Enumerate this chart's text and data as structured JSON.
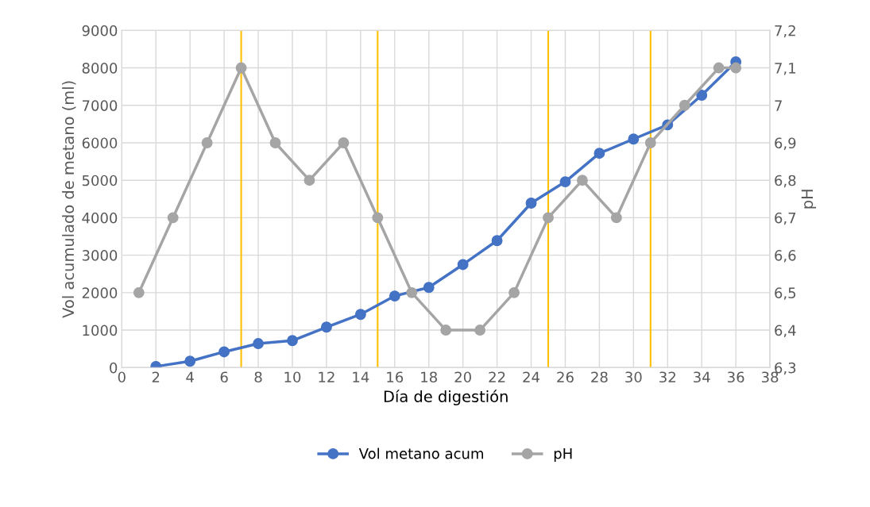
{
  "chart_data": {
    "type": "line",
    "xlabel": "Día de digestión",
    "ylabel": "Vol acumulado de metano (ml)",
    "y2label": "pH",
    "xlim": [
      0,
      38
    ],
    "xticks": [
      0,
      2,
      4,
      6,
      8,
      10,
      12,
      14,
      16,
      18,
      20,
      22,
      24,
      26,
      28,
      30,
      32,
      34,
      36,
      38
    ],
    "ylim": [
      0,
      9000
    ],
    "yticks": [
      0,
      1000,
      2000,
      3000,
      4000,
      5000,
      6000,
      7000,
      8000,
      9000
    ],
    "y2lim": [
      6.3,
      7.2
    ],
    "y2ticks": [
      {
        "value": 6.3,
        "label": "6,3"
      },
      {
        "value": 6.4,
        "label": "6,4"
      },
      {
        "value": 6.5,
        "label": "6,5"
      },
      {
        "value": 6.6,
        "label": "6,6"
      },
      {
        "value": 6.7,
        "label": "6,7"
      },
      {
        "value": 6.8,
        "label": "6,8"
      },
      {
        "value": 6.9,
        "label": "6,9"
      },
      {
        "value": 7.0,
        "label": "7"
      },
      {
        "value": 7.1,
        "label": "7,1"
      },
      {
        "value": 7.2,
        "label": "7,2"
      }
    ],
    "grid": true,
    "legend": "bottom",
    "marker": "circle",
    "line_style": "solid",
    "series": [
      {
        "name": "Vol metano acum",
        "color": "#4472c4",
        "x": [
          2,
          4,
          6,
          8,
          10,
          12,
          14,
          16,
          18,
          20,
          22,
          24,
          26,
          28,
          30,
          32,
          34,
          36
        ],
        "values": [
          30,
          170,
          420,
          640,
          720,
          1080,
          1420,
          1910,
          2140,
          2750,
          3390,
          4390,
          4960,
          5720,
          6100,
          6480,
          7270,
          8160
        ]
      },
      {
        "name": "pH",
        "color": "#a5a5a5",
        "axis": "y2",
        "x": [
          1,
          3,
          5,
          7,
          9,
          11,
          13,
          15,
          17,
          19,
          21,
          23,
          25,
          27,
          29,
          31,
          33,
          35,
          36
        ],
        "values": [
          6.5,
          6.7,
          6.9,
          7.1,
          6.9,
          6.8,
          6.9,
          6.7,
          6.5,
          6.4,
          6.4,
          6.5,
          6.7,
          6.8,
          6.7,
          6.9,
          7.0,
          7.1,
          7.1
        ]
      }
    ],
    "ref_lines": [
      {
        "axis": "x",
        "value": 7,
        "color": "#ffc000"
      },
      {
        "axis": "x",
        "value": 15,
        "color": "#ffc000"
      },
      {
        "axis": "x",
        "value": 25,
        "color": "#ffc000"
      },
      {
        "axis": "x",
        "value": 31,
        "color": "#ffc000"
      }
    ]
  }
}
